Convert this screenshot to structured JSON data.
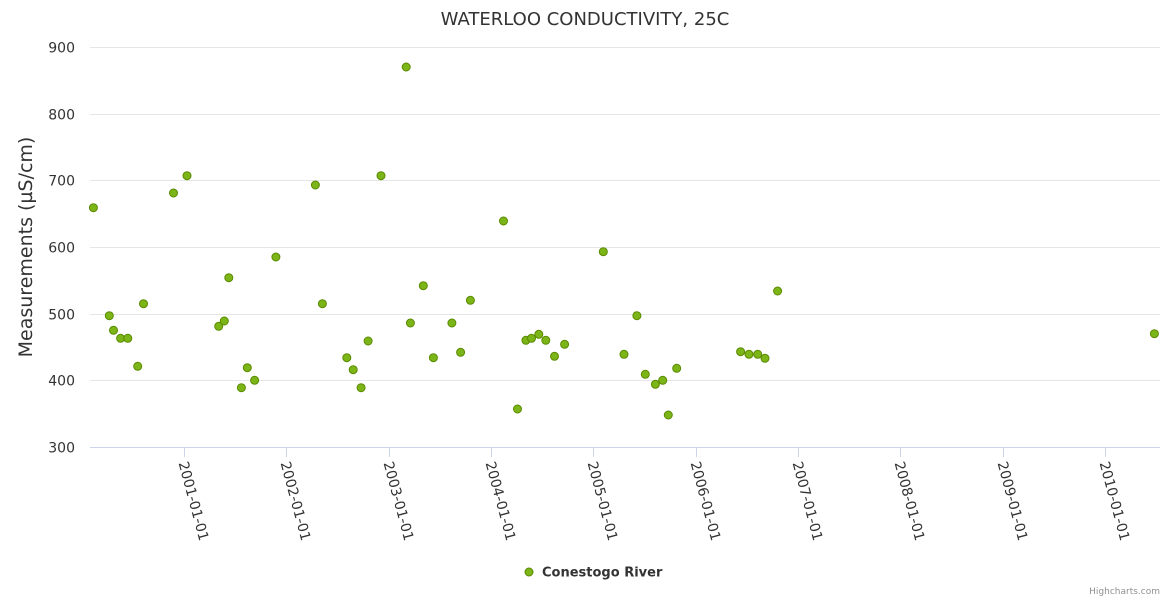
{
  "chart_data": {
    "type": "scatter",
    "title": "WATERLOO CONDUCTIVITY, 25C",
    "xlabel": "",
    "ylabel": "Measurements (µS/cm)",
    "ylim": [
      300,
      900
    ],
    "yticks": [
      "300",
      "400",
      "500",
      "600",
      "700",
      "800",
      "900"
    ],
    "xlim": [
      "2000-02-01",
      "2010-07-15"
    ],
    "xticks": [
      "2001-01-01",
      "2002-01-01",
      "2003-01-01",
      "2004-01-01",
      "2005-01-01",
      "2006-01-01",
      "2007-01-01",
      "2008-01-01",
      "2009-01-01",
      "2010-01-01"
    ],
    "grid": "horizontal",
    "legend": "bottom-center",
    "colors": {
      "marker_fill": "#7cb518",
      "marker_stroke": "#5a8a00",
      "grid": "#e6e6e6",
      "axis": "#ccd6eb"
    },
    "series": [
      {
        "name": "Conestogo River",
        "x": [
          "2000-02-13",
          "2000-04-10",
          "2000-04-25",
          "2000-05-20",
          "2000-06-15",
          "2000-07-20",
          "2000-08-10",
          "2000-11-25",
          "2001-01-12",
          "2001-05-05",
          "2001-05-25",
          "2001-06-10",
          "2001-07-25",
          "2001-08-15",
          "2001-09-10",
          "2001-11-25",
          "2002-04-15",
          "2002-05-10",
          "2002-08-05",
          "2002-08-28",
          "2002-09-25",
          "2002-10-20",
          "2002-12-05",
          "2003-03-05",
          "2003-03-20",
          "2003-05-05",
          "2003-06-10",
          "2003-08-15",
          "2003-09-15",
          "2003-10-20",
          "2004-02-15",
          "2004-04-05",
          "2004-05-05",
          "2004-05-25",
          "2004-06-20",
          "2004-07-15",
          "2004-08-15",
          "2004-09-20",
          "2005-02-05",
          "2005-04-20",
          "2005-06-05",
          "2005-07-05",
          "2005-08-10",
          "2005-09-05",
          "2005-09-25",
          "2005-10-25",
          "2006-06-10",
          "2006-07-10",
          "2006-08-10",
          "2006-09-05",
          "2006-10-20",
          "2010-06-25"
        ],
        "y": [
          659,
          497,
          475,
          463,
          463,
          421,
          515,
          681,
          707,
          481,
          489,
          554,
          389,
          419,
          400,
          585,
          693,
          515,
          434,
          416,
          389,
          459,
          707,
          870,
          486,
          542,
          434,
          486,
          442,
          520,
          639,
          357,
          460,
          463,
          469,
          460,
          436,
          454,
          593,
          439,
          497,
          409,
          394,
          400,
          348,
          418,
          443,
          439,
          439,
          433,
          534,
          470
        ]
      }
    ]
  },
  "credits": "Highcharts.com"
}
